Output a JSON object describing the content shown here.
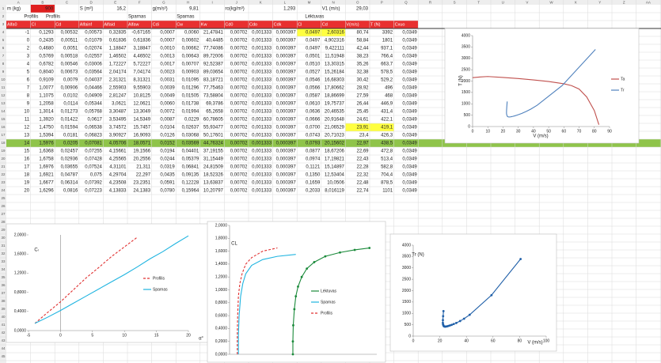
{
  "sheet": {
    "columns": [
      "A",
      "B",
      "C",
      "D",
      "E",
      "F",
      "G",
      "H",
      "I",
      "J",
      "K",
      "L",
      "M",
      "N",
      "O",
      "P",
      "Q",
      "R",
      "S",
      "T",
      "U",
      "V",
      "W",
      "X",
      "Y",
      "Z",
      "AA"
    ],
    "row_numbers": [
      1,
      2,
      3,
      4,
      5,
      6,
      7,
      8,
      9,
      10,
      11,
      12,
      13,
      14,
      15,
      16,
      17,
      18,
      19,
      20,
      21,
      22,
      23,
      24,
      25,
      26,
      27,
      28,
      29,
      30,
      31,
      32,
      33,
      34,
      35,
      36,
      37,
      38,
      39,
      40,
      41,
      42,
      43,
      44,
      45
    ],
    "inputs": [
      {
        "label": "m (kg)",
        "value": "900"
      },
      {
        "label": "S (m²)",
        "value": "16,2"
      },
      {
        "label": "g(m/s²)",
        "value": "9,81"
      },
      {
        "label": "ro(kg/m³)",
        "value": "1,293"
      },
      {
        "label": "V1 (m/s)",
        "value": "29,03"
      }
    ],
    "groups": [
      "Profilis",
      "Profilis",
      "Sparnas",
      "Sparnas",
      "Lėktuvas"
    ],
    "header": [
      "Alfa0",
      "Cl",
      "Cd",
      "Alfainf",
      "Alfaid",
      "Alfaw",
      "Cdi",
      "Cw",
      "Kw",
      "Cd0",
      "Cdo",
      "Cdk",
      "Cl",
      "Cd",
      "V(m/s)",
      "T (N)",
      "Cxuo"
    ],
    "rows": [
      [
        "-1",
        "0,1293",
        "0,00532",
        "0,00573",
        "0,32835",
        "-0,67165",
        "0,0007",
        "0,0060",
        "21,47841",
        "0,00702",
        "0,001333",
        "0,000397",
        "0,0497",
        "2,60316",
        "80,74",
        "3392",
        "0,0349"
      ],
      [
        "0",
        "0,2435",
        "0,00511",
        "0,01079",
        "0,61836",
        "0,61836",
        "0,0007",
        "0,00602",
        "40,4485",
        "0,00702",
        "0,001333",
        "0,000397",
        "0,0497",
        "4,902316",
        "58,84",
        "1801",
        "0,0349"
      ],
      [
        "2",
        "0,4680",
        "0,0051",
        "0,02074",
        "1,18847",
        "3,18847",
        "0,0010",
        "0,00662",
        "77,74086",
        "0,00702",
        "0,001333",
        "0,000397",
        "0,0497",
        "9,422111",
        "42,44",
        "937,1",
        "0,0349"
      ],
      [
        "3",
        "0,5769",
        "0,00518",
        "0,02557",
        "1,46502",
        "4,46502",
        "0,0013",
        "0,00643",
        "89,72006",
        "0,00702",
        "0,001333",
        "0,000397",
        "0,0501",
        "11,51948",
        "38,23",
        "766,4",
        "0,0349"
      ],
      [
        "4",
        "0,6782",
        "0,00546",
        "0,03006",
        "1,72227",
        "5,72227",
        "0,0017",
        "0,00707",
        "92,52387",
        "0,00702",
        "0,001333",
        "0,000397",
        "0,0510",
        "13,30315",
        "35,26",
        "663,7",
        "0,0349"
      ],
      [
        "5",
        "0,8040",
        "0,00673",
        "0,03564",
        "2,04174",
        "7,04174",
        "0,0023",
        "0,00903",
        "89,03654",
        "0,00702",
        "0,001333",
        "0,000397",
        "0,0527",
        "15,26184",
        "32,38",
        "578,5",
        "0,0349"
      ],
      [
        "6",
        "0,9109",
        "0,0079",
        "0,04037",
        "2,31321",
        "8,31321",
        "0,0031",
        "0,01095",
        "83,18721",
        "0,00702",
        "0,001333",
        "0,000397",
        "0,0546",
        "16,68303",
        "30,42",
        "529,2",
        "0,0349"
      ],
      [
        "7",
        "1,0077",
        "0,00906",
        "0,04466",
        "2,55903",
        "9,55903",
        "0,0039",
        "0,01296",
        "77,75463",
        "0,00702",
        "0,001333",
        "0,000397",
        "0,0566",
        "17,80662",
        "28,92",
        "496",
        "0,0349"
      ],
      [
        "8",
        "1,1075",
        "0,0102",
        "0,04909",
        "2,81247",
        "10,8125",
        "0,0049",
        "0,01505",
        "73,58804",
        "0,00702",
        "0,001333",
        "0,000397",
        "0,0587",
        "18,86699",
        "27,59",
        "468",
        "0,0349"
      ],
      [
        "9",
        "1,2058",
        "0,0114",
        "0,05344",
        "3,0621",
        "12,0621",
        "0,0060",
        "0,01738",
        "69,3786",
        "0,00702",
        "0,001333",
        "0,000397",
        "0,0610",
        "19,75737",
        "26,44",
        "446,9",
        "0,0349"
      ],
      [
        "10",
        "1,3014",
        "0,01273",
        "0,05768",
        "3,30487",
        "13,3049",
        "0,0072",
        "0,01994",
        "65,2658",
        "0,00702",
        "0,001333",
        "0,000397",
        "0,0636",
        "20,46535",
        "25,45",
        "431,4",
        "0,0349"
      ],
      [
        "11",
        "1,3920",
        "0,01422",
        "0,0617",
        "3,53495",
        "14,5349",
        "0,0087",
        "0,0229",
        "60,78605",
        "0,00702",
        "0,001333",
        "0,000397",
        "0,0666",
        "20,91648",
        "24,61",
        "422,1",
        "0,0349"
      ],
      [
        "12",
        "1,4750",
        "0,01594",
        "0,06538",
        "3,74572",
        "15,7457",
        "0,0104",
        "0,02637",
        "55,93477",
        "0,00702",
        "0,001333",
        "0,000397",
        "0,0700",
        "21,06529",
        "23,91",
        "419,1",
        "0,0349"
      ],
      [
        "13",
        "1,5394",
        "0,0181",
        "0,06823",
        "3,90927",
        "16,9093",
        "0,0126",
        "0,03068",
        "50,17601",
        "0,00702",
        "0,001333",
        "0,000397",
        "0,0743",
        "20,71023",
        "23,4",
        "426,3",
        "0,0349"
      ],
      [
        "14",
        "1,5976",
        "0,0205",
        "0,07081",
        "4,05706",
        "18,0571",
        "0,0152",
        "0,03569",
        "44,76324",
        "0,00702",
        "0,001333",
        "0,000397",
        "0,0793",
        "20,15602",
        "22,97",
        "438,5",
        "0,0349"
      ],
      [
        "15",
        "1,6368",
        "0,02457",
        "0,07255",
        "4,15661",
        "19,1566",
        "0,0194",
        "0,04401",
        "37,19155",
        "0,00702",
        "0,001333",
        "0,000397",
        "0,0877",
        "18,67206",
        "22,69",
        "472,8",
        "0,0349"
      ],
      [
        "16",
        "1,6758",
        "0,02936",
        "0,07428",
        "4,25565",
        "20,2556",
        "0,0244",
        "0,05379",
        "31,15449",
        "0,00702",
        "0,001333",
        "0,000397",
        "0,0974",
        "17,19821",
        "22,43",
        "513,4",
        "0,0349"
      ],
      [
        "17",
        "1,6976",
        "0,03655",
        "0,07524",
        "4,31101",
        "21,311",
        "0,0319",
        "0,06841",
        "24,81509",
        "0,00702",
        "0,001333",
        "0,000397",
        "0,1121",
        "15,14897",
        "22,28",
        "582,8",
        "0,0349"
      ],
      [
        "18",
        "1,6921",
        "0,04787",
        "0,075",
        "4,29704",
        "22,297",
        "0,0435",
        "0,09135",
        "18,52326",
        "0,00702",
        "0,001333",
        "0,000397",
        "0,1350",
        "12,53404",
        "22,32",
        "704,4",
        "0,0349"
      ],
      [
        "19",
        "1,6677",
        "0,06314",
        "0,07392",
        "4,23508",
        "23,2351",
        "0,0591",
        "0,12228",
        "13,63837",
        "0,00702",
        "0,001333",
        "0,000397",
        "0,1659",
        "10,0506",
        "22,48",
        "878,5",
        "0,0349"
      ],
      [
        "20",
        "1,6296",
        "0,0816",
        "0,07223",
        "4,13833",
        "24,1383",
        "0,0780",
        "0,15964",
        "10,20797",
        "0,00702",
        "0,001333",
        "0,000397",
        "0,2033",
        "8,016119",
        "22,74",
        "1101",
        "0,0349"
      ]
    ]
  },
  "chart_data": [
    {
      "type": "line",
      "y_label": "T (N)",
      "x_label": "V (m/s)",
      "xlim": [
        0,
        90
      ],
      "xticks": [
        0,
        10,
        20,
        30,
        40,
        50,
        60,
        70,
        80,
        90
      ],
      "ylim": [
        0,
        4000
      ],
      "yticks": [
        0,
        500,
        1000,
        1500,
        2000,
        2500,
        3000,
        3500,
        4000
      ],
      "series": [
        {
          "name": "Ta",
          "color": "#c0504d",
          "x": [
            0,
            5,
            10,
            20,
            30,
            40,
            50,
            60,
            65,
            70,
            75,
            80,
            83
          ],
          "values": [
            2150,
            2180,
            2200,
            2160,
            2110,
            2050,
            1980,
            1880,
            1800,
            1650,
            1300,
            700,
            80
          ]
        },
        {
          "name": "Tr",
          "color": "#4f81bd",
          "x": [
            80.74,
            58.84,
            42.44,
            38.23,
            35.26,
            32.38,
            30.42,
            28.92,
            27.59,
            26.44,
            25.45,
            24.61,
            23.91,
            23.4,
            22.97,
            22.69,
            22.43,
            22.28,
            22.32,
            22.48,
            22.74
          ],
          "values": [
            3392,
            1801,
            937.1,
            766.4,
            663.7,
            578.5,
            529.2,
            496,
            468,
            446.9,
            431.4,
            422.1,
            419.1,
            426.3,
            438.5,
            472.8,
            513.4,
            582.8,
            704.4,
            878.5,
            1101
          ]
        }
      ]
    },
    {
      "type": "line",
      "y_label": "Cₗ",
      "x_label": "α°",
      "xlim": [
        -5,
        20
      ],
      "xticks": [
        -5,
        0,
        5,
        10,
        15,
        20
      ],
      "ylim": [
        0,
        2
      ],
      "yticks": [
        {
          "value": 0,
          "label": "0,0000"
        },
        {
          "value": 0.4,
          "label": "0,4000"
        },
        {
          "value": 0.8,
          "label": "0,8000"
        },
        {
          "value": 1.2,
          "label": "1,2000"
        },
        {
          "value": 1.6,
          "label": "1,6000"
        },
        {
          "value": 2,
          "label": "2,0000"
        }
      ],
      "series": [
        {
          "name": "Profilis",
          "color": "#e03030",
          "dash": true,
          "x": [
            -4,
            -2,
            0,
            2,
            4,
            6,
            8,
            10,
            12
          ],
          "values": [
            0.15,
            0.38,
            0.6,
            0.85,
            1.1,
            1.32,
            1.55,
            1.75,
            1.95
          ]
        },
        {
          "name": "Sparnas",
          "color": "#1fb4e0",
          "x": [
            -4,
            -2,
            0,
            2,
            4,
            6,
            8,
            10,
            12,
            14,
            16,
            18,
            20
          ],
          "values": [
            0.15,
            0.28,
            0.42,
            0.57,
            0.72,
            0.87,
            1.02,
            1.17,
            1.33,
            1.5,
            1.65,
            1.82,
            1.98
          ]
        }
      ]
    },
    {
      "type": "line",
      "y_label": "CL",
      "xlim": [
        0,
        0.2
      ],
      "ylim": [
        0,
        2
      ],
      "yticks": [
        {
          "value": 0,
          "label": "0,0000"
        },
        {
          "value": 0.2,
          "label": "0,2000"
        },
        {
          "value": 0.4,
          "label": "0,4000"
        },
        {
          "value": 0.6,
          "label": "0,6000"
        },
        {
          "value": 0.8,
          "label": "0,8000"
        },
        {
          "value": 1,
          "label": "1,0000"
        },
        {
          "value": 1.2,
          "label": "1,2000"
        },
        {
          "value": 1.4,
          "label": "1,4000"
        },
        {
          "value": 1.6,
          "label": "1,6000"
        },
        {
          "value": 1.8,
          "label": "1,8000"
        },
        {
          "value": 2,
          "label": "2,0000"
        }
      ],
      "series": [
        {
          "name": "Lėktuvas",
          "color": "#1a8a3a",
          "markers": true,
          "x": [
            0.086,
            0.086,
            0.0865,
            0.088,
            0.09,
            0.093,
            0.098,
            0.105,
            0.115,
            0.13,
            0.15,
            0.17,
            0.19
          ],
          "values": [
            0,
            0.2,
            0.45,
            0.7,
            0.9,
            1.05,
            1.2,
            1.33,
            1.43,
            1.52,
            1.58,
            1.62,
            1.65
          ]
        },
        {
          "name": "Sparnas",
          "color": "#1fb4e0",
          "x": [
            0.012,
            0.012,
            0.013,
            0.015,
            0.018,
            0.022,
            0.03,
            0.045,
            0.065,
            0.09
          ],
          "values": [
            0,
            0.3,
            0.6,
            0.9,
            1.1,
            1.25,
            1.38,
            1.47,
            1.52,
            1.55
          ]
        },
        {
          "name": "Profilis",
          "color": "#e03030",
          "dash": true,
          "x": [
            0.0105,
            0.0105,
            0.011,
            0.012,
            0.014,
            0.017,
            0.022,
            0.03,
            0.045,
            0.065
          ],
          "values": [
            0,
            0.3,
            0.6,
            0.9,
            1.1,
            1.25,
            1.4,
            1.5,
            1.6,
            1.65
          ]
        }
      ]
    },
    {
      "type": "line",
      "y_label": "Tr (N)",
      "x_label": "V (m/s)",
      "xlim": [
        0,
        100
      ],
      "xticks": [
        0,
        20,
        40,
        60,
        80,
        100
      ],
      "ylim": [
        0,
        4000
      ],
      "yticks": [
        0,
        500,
        1000,
        1500,
        2000,
        2500,
        3000,
        3500,
        4000
      ],
      "series": [
        {
          "color": "#1f5fa8",
          "markers": true,
          "x": [
            80.74,
            58.84,
            42.44,
            38.23,
            35.26,
            32.38,
            30.42,
            28.92,
            27.59,
            26.44,
            25.45,
            24.61,
            23.91,
            23.4,
            22.97,
            22.69,
            22.43,
            22.28,
            22.32,
            22.48,
            22.74
          ],
          "values": [
            3392,
            1801,
            937.1,
            766.4,
            663.7,
            578.5,
            529.2,
            496,
            468,
            446.9,
            431.4,
            422.1,
            419.1,
            426.3,
            438.5,
            472.8,
            513.4,
            582.8,
            704.4,
            878.5,
            1101
          ]
        }
      ]
    }
  ]
}
